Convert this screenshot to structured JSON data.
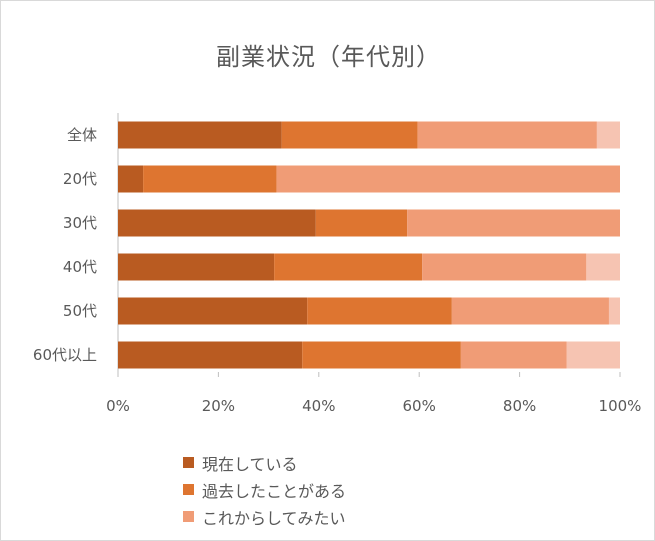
{
  "chart_data": {
    "type": "bar",
    "orientation": "horizontal",
    "stacked": "percent",
    "title": "副業状況（年代別）",
    "categories": [
      "全体",
      "20代",
      "30代",
      "40代",
      "50代",
      "60代以上"
    ],
    "series": [
      {
        "name": "現在している",
        "color": "#b95b21",
        "values": [
          32.6,
          5.0,
          39.4,
          31.1,
          37.7,
          36.7
        ]
      },
      {
        "name": "過去したことがある",
        "color": "#de7530",
        "values": [
          27.1,
          26.6,
          18.2,
          29.5,
          28.8,
          31.6
        ]
      },
      {
        "name": "これからしてみたい",
        "color": "#f09c76",
        "values": [
          35.7,
          68.4,
          42.4,
          32.7,
          31.3,
          21.1
        ]
      },
      {
        "color": "#f6c4b2",
        "values": [
          4.6,
          0.0,
          0.0,
          6.7,
          2.2,
          10.6
        ]
      }
    ],
    "x_ticks": [
      "0%",
      "20%",
      "40%",
      "60%",
      "80%",
      "100%"
    ],
    "xlim": [
      0,
      100
    ],
    "legend_position": "bottom",
    "grid": false
  }
}
